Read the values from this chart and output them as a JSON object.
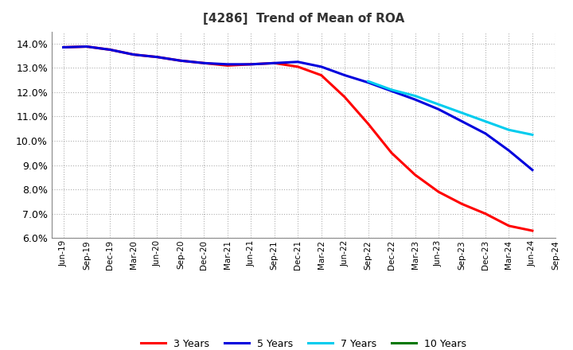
{
  "title": "[4286]  Trend of Mean of ROA",
  "background_color": "#ffffff",
  "grid_color": "#b0b0b0",
  "ylim": [
    0.06,
    0.145
  ],
  "yticks": [
    0.06,
    0.07,
    0.08,
    0.09,
    0.1,
    0.11,
    0.12,
    0.13,
    0.14
  ],
  "x_labels": [
    "Jun-19",
    "Sep-19",
    "Dec-19",
    "Mar-20",
    "Jun-20",
    "Sep-20",
    "Dec-20",
    "Mar-21",
    "Jun-21",
    "Sep-21",
    "Dec-21",
    "Mar-22",
    "Jun-22",
    "Sep-22",
    "Dec-22",
    "Mar-23",
    "Jun-23",
    "Sep-23",
    "Dec-23",
    "Mar-24",
    "Jun-24",
    "Sep-24"
  ],
  "series": {
    "3 Years": {
      "color": "#ff0000",
      "data_x": [
        0,
        1,
        2,
        3,
        4,
        5,
        6,
        7,
        8,
        9,
        10,
        11,
        12,
        13,
        14,
        15,
        16,
        17,
        18,
        19,
        20
      ],
      "data_y": [
        0.1385,
        0.1388,
        0.1375,
        0.1355,
        0.1345,
        0.133,
        0.132,
        0.131,
        0.1315,
        0.132,
        0.1305,
        0.127,
        0.118,
        0.107,
        0.095,
        0.086,
        0.079,
        0.074,
        0.07,
        0.065,
        0.063
      ]
    },
    "5 Years": {
      "color": "#0000dd",
      "data_x": [
        0,
        1,
        2,
        3,
        4,
        5,
        6,
        7,
        8,
        9,
        10,
        11,
        12,
        13,
        14,
        15,
        16,
        17,
        18,
        19,
        20
      ],
      "data_y": [
        0.1385,
        0.1388,
        0.1375,
        0.1355,
        0.1345,
        0.133,
        0.132,
        0.1315,
        0.1315,
        0.132,
        0.1325,
        0.1305,
        0.127,
        0.124,
        0.1205,
        0.117,
        0.113,
        0.108,
        0.103,
        0.096,
        0.088
      ]
    },
    "7 Years": {
      "color": "#00ccee",
      "data_x": [
        13,
        14,
        15,
        16,
        17,
        18,
        19,
        20
      ],
      "data_y": [
        0.1245,
        0.121,
        0.1185,
        0.115,
        0.1115,
        0.108,
        0.1045,
        0.1025
      ]
    },
    "10 Years": {
      "color": "#007700",
      "data_x": [],
      "data_y": []
    }
  },
  "legend_labels": [
    "3 Years",
    "5 Years",
    "7 Years",
    "10 Years"
  ],
  "legend_colors": [
    "#ff0000",
    "#0000dd",
    "#00ccee",
    "#007700"
  ]
}
